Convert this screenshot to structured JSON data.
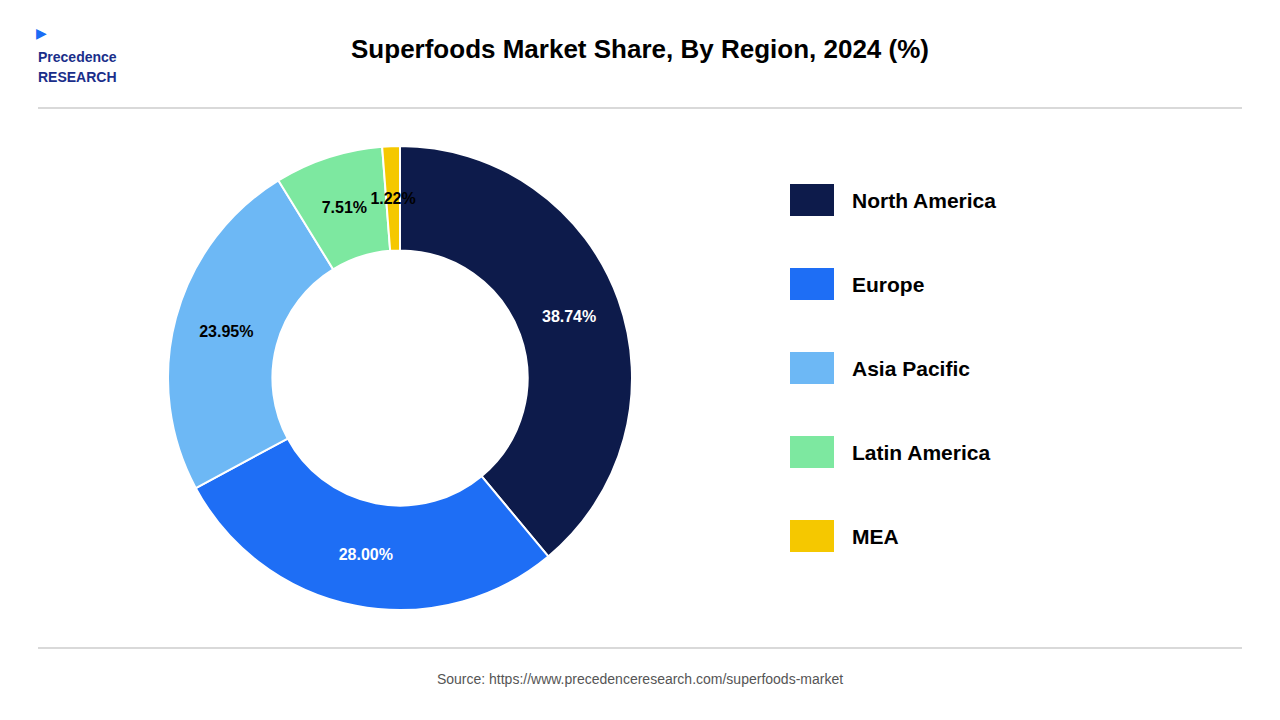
{
  "chart_data": {
    "type": "donut",
    "title": "Superfoods Market Share, By Region, 2024 (%)",
    "categories": [
      "North America",
      "Europe",
      "Asia Pacific",
      "Latin America",
      "MEA"
    ],
    "values": [
      38.74,
      28.0,
      23.95,
      7.51,
      1.22
    ],
    "value_labels": [
      "38.74%",
      "28.00%",
      "23.95%",
      "7.51%",
      "1.22%"
    ],
    "colors": [
      "#0d1b4b",
      "#1e6ef5",
      "#6db8f5",
      "#7de8a0",
      "#f5c800"
    ],
    "data_labels": true,
    "legend": "right",
    "annotations": [
      "Source: https://www.precedenceresearch.com/superfoods-market",
      "Precedence",
      "RESEARCH",
      "▶"
    ]
  }
}
